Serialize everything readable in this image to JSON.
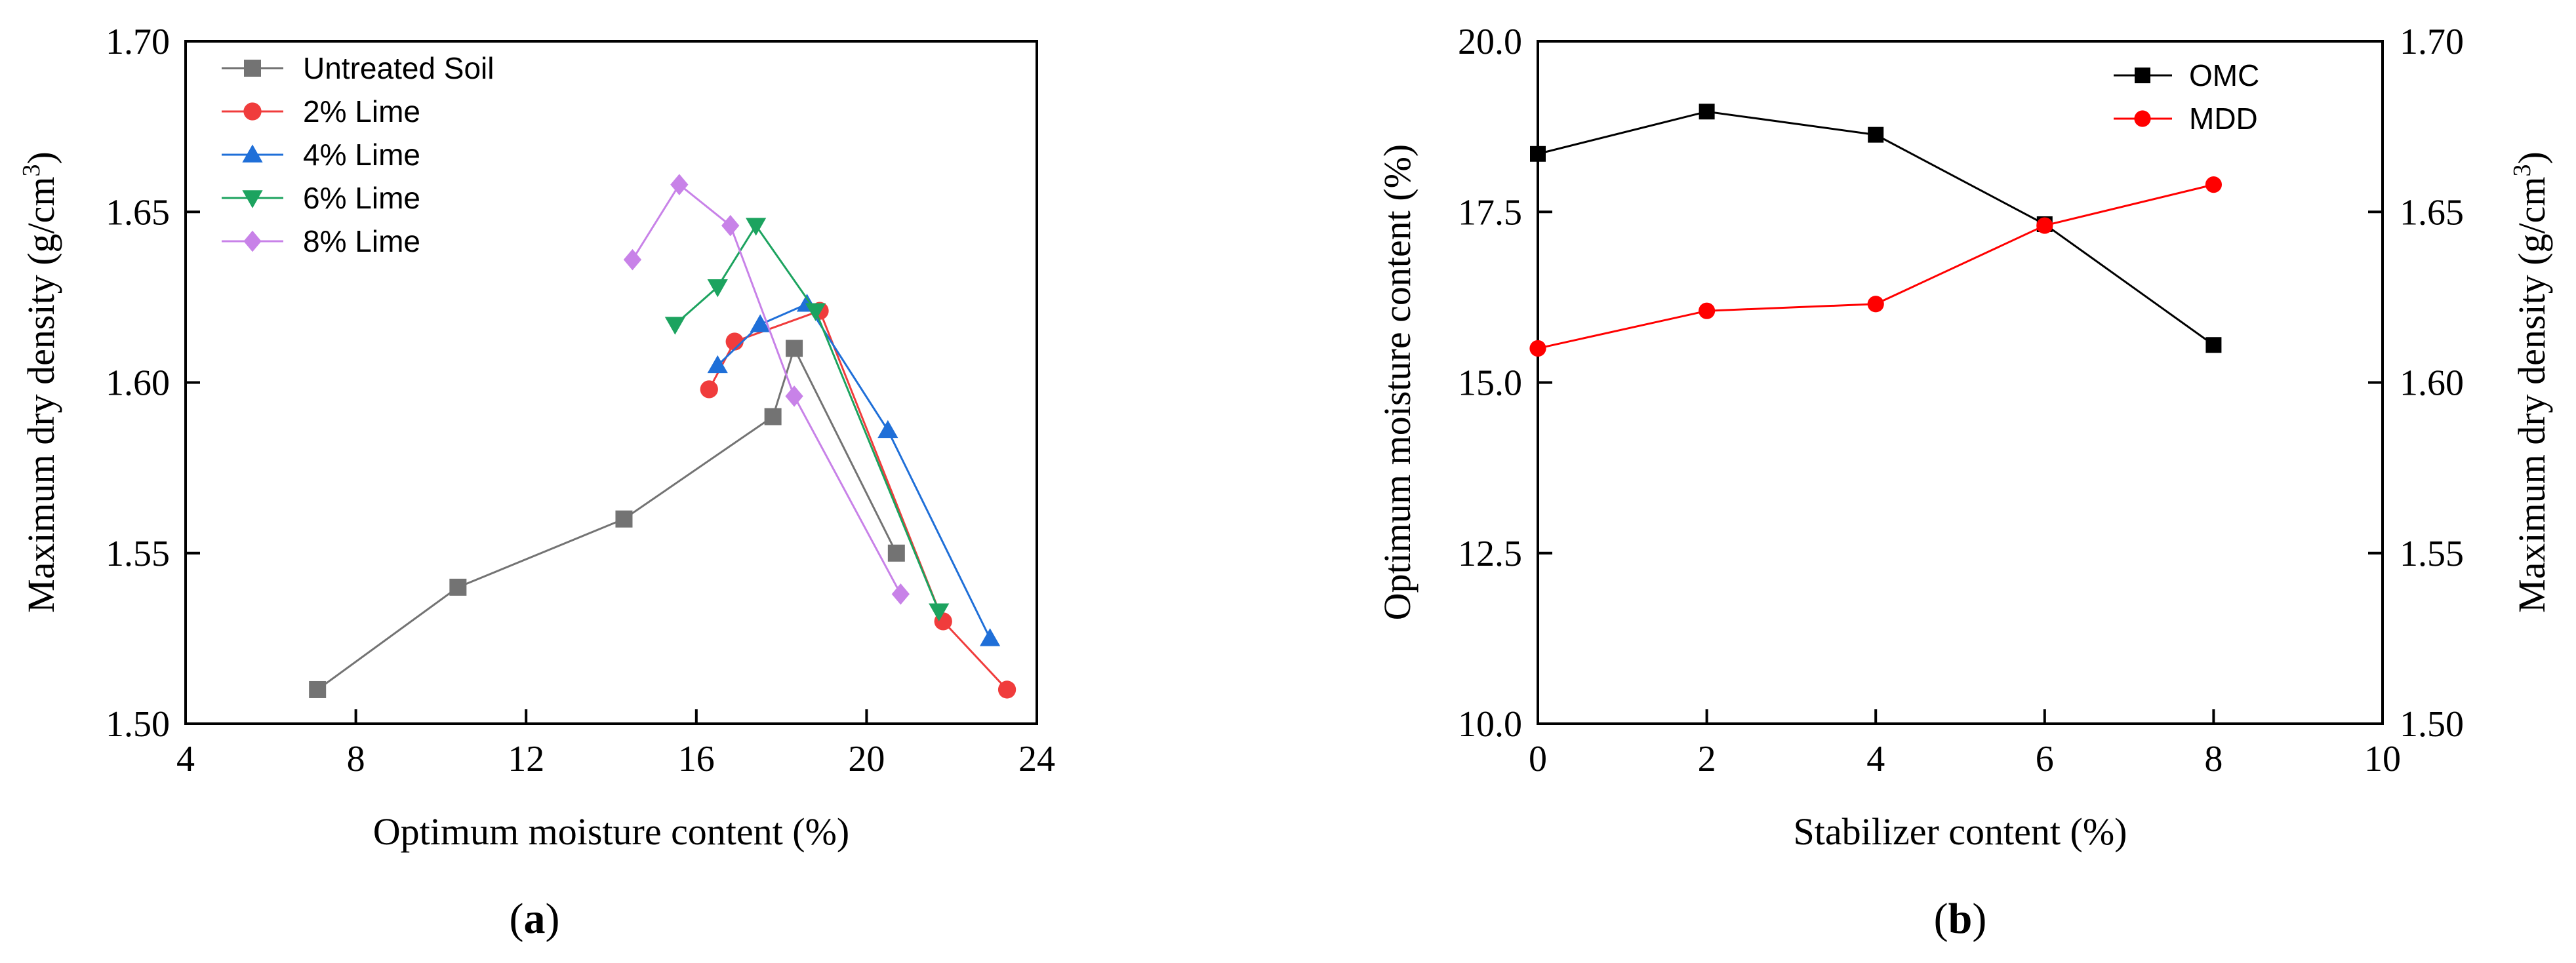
{
  "chart_data": [
    {
      "type": "line",
      "panel_label": "a",
      "title": "",
      "xlabel": "Optimum moisture content (%)",
      "ylabel": "Maximum dry density (g/cm³)",
      "ylabel_main": "Maximum dry density (g/cm",
      "ylabel_sup": "3",
      "ylabel_close": ")",
      "xlim": [
        4,
        24
      ],
      "ylim": [
        1.5,
        1.7
      ],
      "xticks": [
        "4",
        "8",
        "12",
        "16",
        "20",
        "24"
      ],
      "yticks": [
        "1.50",
        "1.55",
        "1.60",
        "1.65",
        "1.70"
      ],
      "legend_position": "top-left",
      "series": [
        {
          "name": "Untreated Soil",
          "color": "#737373",
          "marker": "square",
          "x": [
            7.1,
            10.4,
            14.3,
            17.8,
            18.3,
            20.7
          ],
          "y": [
            1.51,
            1.54,
            1.56,
            1.59,
            1.61,
            1.55
          ]
        },
        {
          "name": "2% Lime",
          "color": "#f03c3c",
          "marker": "circle",
          "x": [
            16.3,
            16.9,
            18.9,
            21.8,
            23.3
          ],
          "y": [
            1.598,
            1.612,
            1.621,
            1.53,
            1.51
          ]
        },
        {
          "name": "4% Lime",
          "color": "#1f6fd8",
          "marker": "triangle-up",
          "x": [
            16.5,
            17.5,
            18.6,
            20.5,
            22.9
          ],
          "y": [
            1.605,
            1.617,
            1.623,
            1.586,
            1.525
          ]
        },
        {
          "name": "6% Lime",
          "color": "#1ca35f",
          "marker": "triangle-down",
          "x": [
            15.5,
            16.5,
            17.4,
            18.8,
            21.7
          ],
          "y": [
            1.617,
            1.628,
            1.646,
            1.621,
            1.533
          ]
        },
        {
          "name": "8% Lime",
          "color": "#c882e8",
          "marker": "diamond",
          "x": [
            14.5,
            15.6,
            16.8,
            18.3,
            20.8
          ],
          "y": [
            1.636,
            1.658,
            1.646,
            1.596,
            1.538
          ]
        }
      ]
    },
    {
      "type": "line",
      "panel_label": "b",
      "title": "",
      "xlabel": "Stabilizer content (%)",
      "ylabel": "Optimum moisture content (%)",
      "y2label": "Maximum dry density (g/cm³)",
      "y2label_main": "Maximum dry density (g/cm",
      "y2label_sup": "3",
      "y2label_close": ")",
      "xlim": [
        0,
        10
      ],
      "ylim": [
        10.0,
        20.0
      ],
      "y2lim": [
        1.5,
        1.7
      ],
      "xticks": [
        "0",
        "2",
        "4",
        "6",
        "8",
        "10"
      ],
      "yticks": [
        "10.0",
        "12.5",
        "15.0",
        "17.5",
        "20.0"
      ],
      "y2ticks": [
        "1.50",
        "1.55",
        "1.60",
        "1.65",
        "1.70"
      ],
      "legend_position": "top-right",
      "series": [
        {
          "name": "OMC",
          "color": "#000000",
          "marker": "square",
          "axis": "left",
          "x": [
            0,
            2,
            4,
            6,
            8
          ],
          "y": [
            18.35,
            18.97,
            18.63,
            17.32,
            15.55
          ]
        },
        {
          "name": "MDD",
          "color": "#ff0000",
          "marker": "circle",
          "axis": "right",
          "x": [
            0,
            2,
            4,
            6,
            8
          ],
          "y": [
            1.61,
            1.621,
            1.623,
            1.646,
            1.658
          ]
        }
      ]
    }
  ]
}
